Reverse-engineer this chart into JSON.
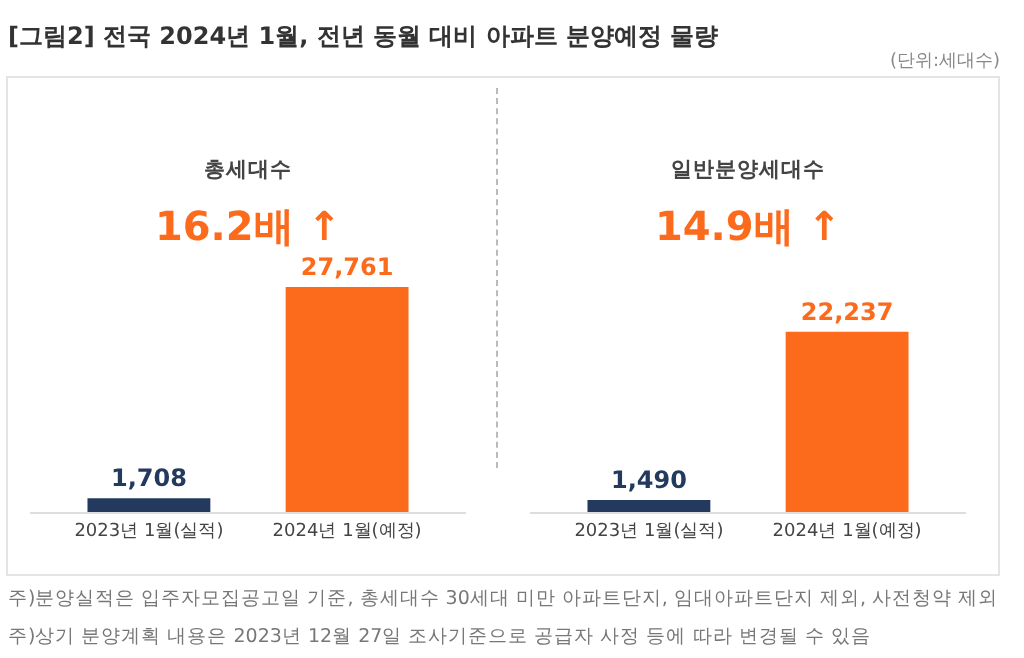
{
  "chart_data": [
    {
      "type": "bar",
      "title": "[그림2] 전국 2024년 1월, 전년 동월 대비 아파트 분양예정 물량",
      "subtitle": "총세대수",
      "categories": [
        "2023년 1월(실적)",
        "2024년 1월(예정)"
      ],
      "values": [
        1708,
        27761
      ],
      "value_labels": [
        "1,708",
        "27,761"
      ],
      "colors": [
        "#233a5e",
        "#fc6a1c"
      ],
      "annotations": [
        "16.2배 ↑",
        "(단위:세대수)"
      ]
    },
    {
      "type": "bar",
      "subtitle": "일반분양세대수",
      "categories": [
        "2023년 1월(실적)",
        "2024년 1월(예정)"
      ],
      "values": [
        1490,
        22237
      ],
      "value_labels": [
        "1,490",
        "22,237"
      ],
      "colors": [
        "#233a5e",
        "#fc6a1c"
      ],
      "annotations": [
        "14.9배 ↑",
        "주)분양실적은 입주자모집공고일 기준, 총세대수 30세대 미만 아파트단지, 임대아파트단지 제외, 사전청약 제외",
        "주)상기 분양계획 내용은 2023년 12월 27일 조사기준으로 공급자 사정 등에 따라 변경될 수 있음"
      ]
    }
  ]
}
